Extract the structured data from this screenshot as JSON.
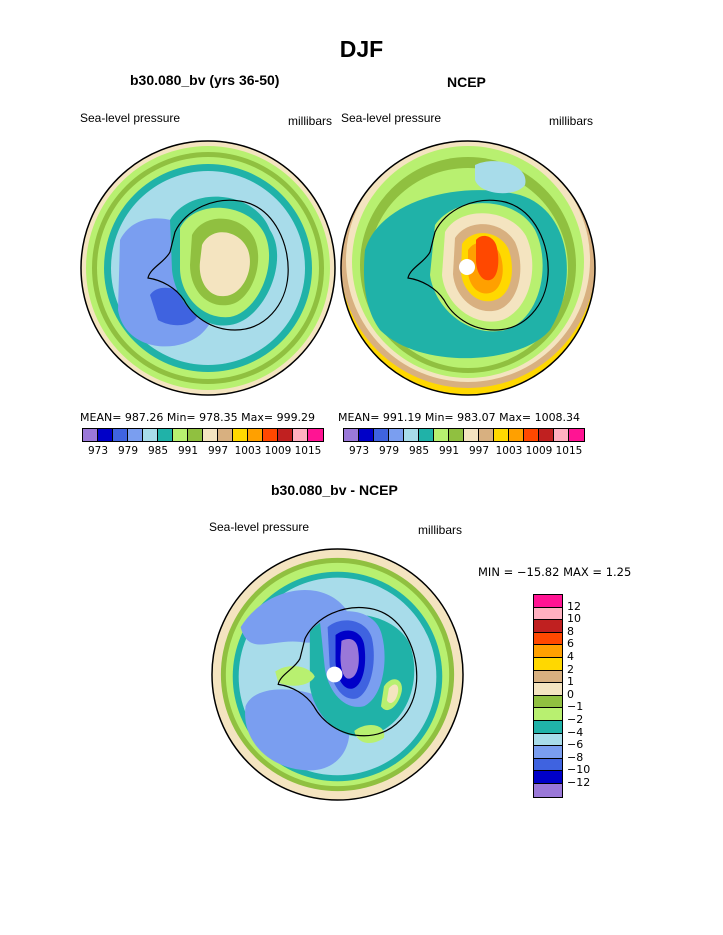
{
  "title": "DJF",
  "panels": {
    "model": {
      "title": "b30.080_bv (yrs 36-50)",
      "left_label": "Sea-level pressure",
      "right_label": "millibars",
      "stats": "MEAN= 987.26    Min= 978.35    Max= 999.29"
    },
    "obs": {
      "title": "NCEP",
      "left_label": "Sea-level pressure",
      "right_label": "millibars",
      "stats": "MEAN= 991.19    Min= 983.07    Max= 1008.34"
    },
    "diff": {
      "title": "b30.080_bv - NCEP",
      "left_label": "Sea-level pressure",
      "right_label": "millibars",
      "stats": "MIN = −15.82  MAX =    1.25"
    }
  },
  "colorbar_top": {
    "colors": [
      "#9a78d8",
      "#0000c8",
      "#3f63e0",
      "#7a9ef0",
      "#a8dcea",
      "#20b2a8",
      "#b8f070",
      "#90c040",
      "#f4e4c0",
      "#d8b080",
      "#ffd800",
      "#ffa000",
      "#ff4800",
      "#c02020",
      "#ffb0c0",
      "#ff1493"
    ],
    "ticks": [
      "973",
      "979",
      "985",
      "991",
      "997",
      "1003",
      "1009",
      "1015"
    ]
  },
  "colorbar_diff": {
    "colors": [
      "#ff1493",
      "#ffb0c0",
      "#c02020",
      "#ff4800",
      "#ffa000",
      "#ffd800",
      "#d8b080",
      "#f4e4c0",
      "#90c040",
      "#b8f070",
      "#20b2a8",
      "#a8dcea",
      "#7a9ef0",
      "#3f63e0",
      "#0000c8",
      "#9a78d8"
    ],
    "ticks": [
      "12",
      "10",
      "8",
      "6",
      "4",
      "2",
      "1",
      "0",
      "−1",
      "−2",
      "−4",
      "−6",
      "−8",
      "−10",
      "−12"
    ]
  }
}
